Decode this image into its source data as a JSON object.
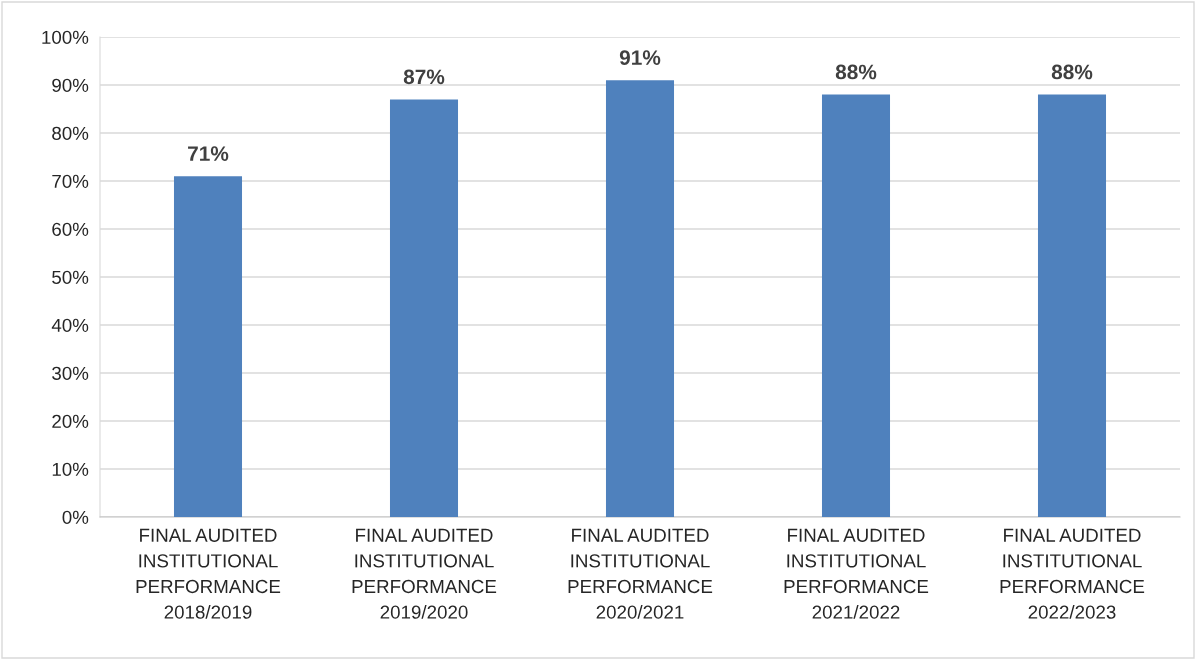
{
  "chart_data": {
    "type": "bar",
    "categories": [
      "FINAL AUDITED\nINSTITUTIONAL\nPERFORMANCE\n2018/2019",
      "FINAL AUDITED\nINSTITUTIONAL\nPERFORMANCE\n2019/2020",
      "FINAL AUDITED\nINSTITUTIONAL\nPERFORMANCE\n2020/2021",
      "FINAL AUDITED\nINSTITUTIONAL\nPERFORMANCE\n2021/2022",
      "FINAL AUDITED\nINSTITUTIONAL\nPERFORMANCE\n2022/2023"
    ],
    "values": [
      71,
      87,
      91,
      88,
      88
    ],
    "value_labels": [
      "71%",
      "87%",
      "91%",
      "88%",
      "88%"
    ],
    "color": "#4f81bd",
    "ylim": [
      0,
      100
    ],
    "yticks": [
      {
        "value": 0,
        "label": "0%"
      },
      {
        "value": 10,
        "label": "10%"
      },
      {
        "value": 20,
        "label": "20%"
      },
      {
        "value": 30,
        "label": "30%"
      },
      {
        "value": 40,
        "label": "40%"
      },
      {
        "value": 50,
        "label": "50%"
      },
      {
        "value": 60,
        "label": "60%"
      },
      {
        "value": 70,
        "label": "70%"
      },
      {
        "value": 80,
        "label": "80%"
      },
      {
        "value": 90,
        "label": "90%"
      },
      {
        "value": 100,
        "label": "100%"
      }
    ],
    "grid": "y",
    "legend": false
  }
}
